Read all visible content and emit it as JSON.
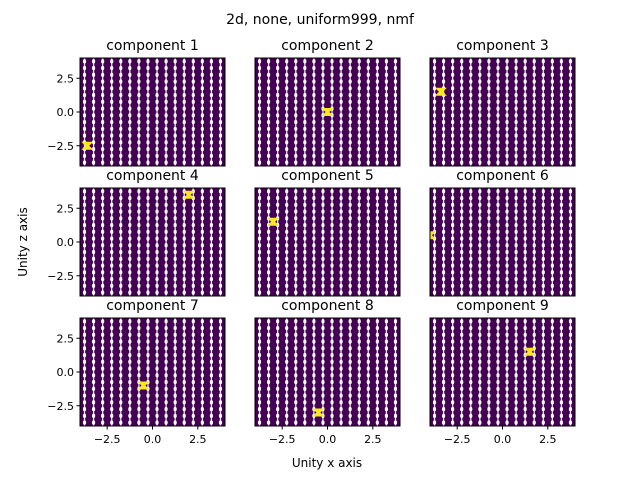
{
  "figure": {
    "suptitle": "2d, none, uniform999, nmf",
    "xlabel": "Unity x axis",
    "ylabel": "Unity z axis"
  },
  "colors": {
    "background": "#440154",
    "line": "#ffffff",
    "highlight": "#fde725"
  },
  "chart_data": {
    "type": "heatmap",
    "xlim": [
      -4,
      4
    ],
    "ylim": [
      -4,
      4
    ],
    "xticks": [
      -2.5,
      0.0,
      2.5
    ],
    "xtick_labels": [
      "−2.5",
      "0.0",
      "2.5"
    ],
    "yticks": [
      -2.5,
      0.0,
      2.5
    ],
    "ytick_labels": [
      "−2.5",
      "0.0",
      "2.5"
    ],
    "grid_lines_x": [
      -3.75,
      -3.25,
      -2.75,
      -2.25,
      -1.75,
      -1.25,
      -0.75,
      -0.25,
      0.25,
      0.75,
      1.25,
      1.75,
      2.25,
      2.75,
      3.25,
      3.75
    ],
    "grid_dots_z": [
      -3.75,
      -3.25,
      -2.75,
      -2.25,
      -1.75,
      -1.25,
      -0.75,
      -0.25,
      0.25,
      0.75,
      1.25,
      1.75,
      2.25,
      2.75,
      3.25,
      3.75
    ],
    "panels": [
      {
        "title": "component 1",
        "peak": {
          "x": -3.6,
          "z": -2.5
        }
      },
      {
        "title": "component 2",
        "peak": {
          "x": 0.0,
          "z": 0.0
        }
      },
      {
        "title": "component 3",
        "peak": {
          "x": -3.4,
          "z": 1.5
        }
      },
      {
        "title": "component 4",
        "peak": {
          "x": 2.0,
          "z": 3.5
        }
      },
      {
        "title": "component 5",
        "peak": {
          "x": -3.0,
          "z": 1.5
        }
      },
      {
        "title": "component 6",
        "peak": {
          "x": -4.0,
          "z": 0.5
        }
      },
      {
        "title": "component 7",
        "peak": {
          "x": -0.5,
          "z": -1.0
        }
      },
      {
        "title": "component 8",
        "peak": {
          "x": -0.5,
          "z": -3.0
        }
      },
      {
        "title": "component 9",
        "peak": {
          "x": 1.5,
          "z": 1.5
        }
      }
    ]
  }
}
